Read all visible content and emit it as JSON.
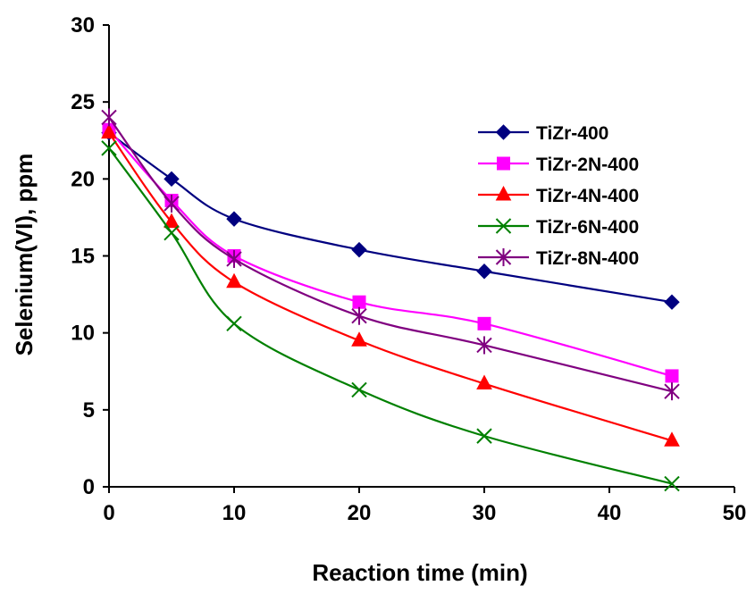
{
  "chart_data": {
    "type": "line",
    "title": "",
    "xlabel": "Reaction time (min)",
    "ylabel": "Selenium(VI), ppm",
    "xlim": [
      0,
      50
    ],
    "ylim": [
      0,
      30
    ],
    "xticks": [
      "0",
      "10",
      "20",
      "30",
      "40",
      "50"
    ],
    "yticks": [
      "0",
      "5",
      "10",
      "15",
      "20",
      "25",
      "30"
    ],
    "grid": false,
    "legend_position": "top-right",
    "x": [
      0,
      5,
      10,
      20,
      30,
      45
    ],
    "series": [
      {
        "name": "TiZr-400",
        "color": "#000080",
        "marker": "diamond",
        "values": [
          23.0,
          20.0,
          17.4,
          15.4,
          14.0,
          12.0
        ]
      },
      {
        "name": "TiZr-2N-400",
        "color": "#FF00FF",
        "marker": "square",
        "values": [
          23.2,
          18.6,
          15.0,
          12.0,
          10.6,
          7.2
        ]
      },
      {
        "name": "TiZr-4N-400",
        "color": "#FF0000",
        "marker": "triangle",
        "values": [
          23.0,
          17.2,
          13.3,
          9.5,
          6.7,
          3.0
        ]
      },
      {
        "name": "TiZr-6N-400",
        "color": "#008000",
        "marker": "x",
        "values": [
          22.0,
          16.5,
          10.6,
          6.3,
          3.3,
          0.2
        ]
      },
      {
        "name": "TiZr-8N-400",
        "color": "#800080",
        "marker": "star",
        "values": [
          24.0,
          18.4,
          14.8,
          11.1,
          9.2,
          6.2
        ]
      }
    ]
  }
}
